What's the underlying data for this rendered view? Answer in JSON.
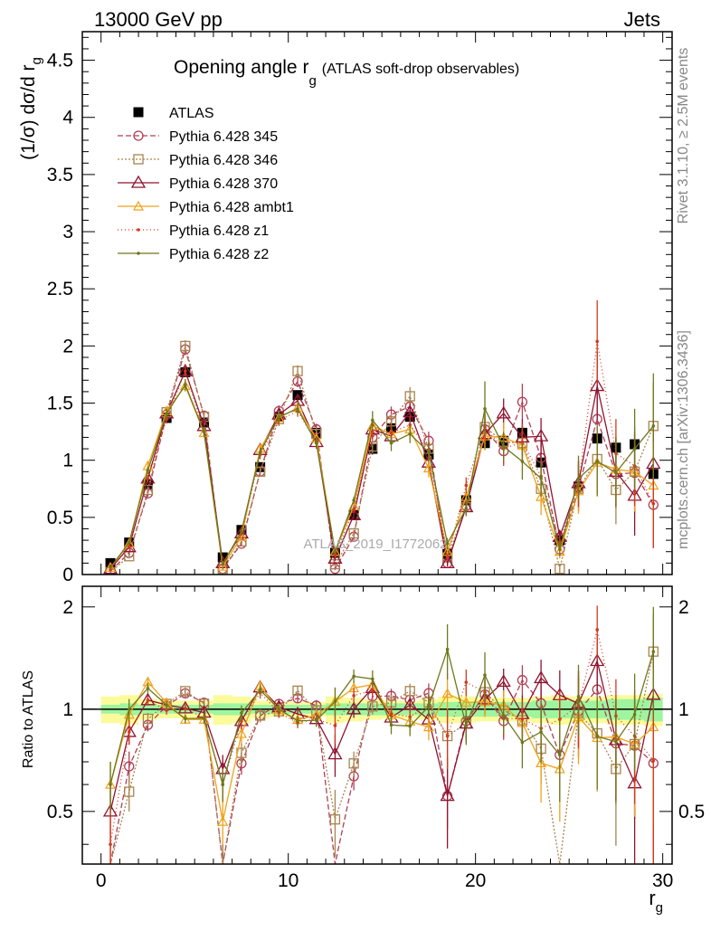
{
  "header": {
    "left": "13000 GeV pp",
    "right": "Jets"
  },
  "side_labels": {
    "rivet": "Rivet 3.1.10, ≥ 2.5M events",
    "mcplots": "mcplots.cern.ch [arXiv:1306.3436]"
  },
  "watermark": "ATLAS_2019_I1772062",
  "chart_data": [
    {
      "type": "line",
      "name": "main-panel",
      "title": "Opening angle r",
      "title_sub": "g",
      "title_suffix": "(ATLAS soft-drop observables)",
      "ylabel": "(1/σ) dσ/d r",
      "ylabel_sub": "g",
      "xlabel": "",
      "xlim": [
        -1,
        30.5
      ],
      "ylim": [
        0,
        4.75
      ],
      "yticks": [
        0,
        0.5,
        1,
        1.5,
        2,
        2.5,
        3,
        3.5,
        4,
        4.5
      ],
      "ytick_labels": [
        "0",
        "0.5",
        "1",
        "1.5",
        "2",
        "2.5",
        "3",
        "3.5",
        "4",
        "4.5"
      ],
      "x": [
        0.5,
        1.5,
        2.5,
        3.5,
        4.5,
        5.5,
        6.5,
        7.5,
        8.5,
        9.5,
        10.5,
        11.5,
        12.5,
        13.5,
        14.5,
        15.5,
        16.5,
        17.5,
        18.5,
        19.5,
        20.5,
        21.5,
        22.5,
        23.5,
        24.5,
        25.5,
        26.5,
        27.5,
        28.5,
        29.5
      ],
      "series": [
        {
          "name": "ATLAS",
          "color": "#000000",
          "marker": "square-filled",
          "dash": "none",
          "values": [
            0.1,
            0.28,
            0.79,
            1.37,
            1.77,
            1.33,
            0.15,
            0.39,
            0.94,
            1.38,
            1.57,
            1.24,
            0.19,
            0.52,
            1.1,
            1.28,
            1.38,
            1.05,
            0.18,
            0.65,
            1.15,
            1.17,
            1.24,
            0.98,
            0.3,
            0.77,
            1.19,
            1.11,
            1.14,
            0.88
          ],
          "errors": [
            0.01,
            0.02,
            0.03,
            0.04,
            0.04,
            0.04,
            0.02,
            0.03,
            0.04,
            0.04,
            0.04,
            0.04,
            0.03,
            0.04,
            0.05,
            0.05,
            0.05,
            0.05,
            0.03,
            0.05,
            0.06,
            0.06,
            0.06,
            0.06,
            0.04,
            0.07,
            0.08,
            0.09,
            0.1,
            0.1
          ]
        },
        {
          "name": "Pythia 6.428 345",
          "color": "#b03f55",
          "marker": "circle-open",
          "dash": "6,3",
          "values": [
            0.03,
            0.19,
            0.71,
            1.4,
            1.97,
            1.39,
            0.05,
            0.27,
            0.9,
            1.43,
            1.69,
            1.27,
            0.05,
            0.33,
            1.2,
            1.4,
            1.47,
            1.17,
            0.1,
            0.6,
            1.27,
            1.08,
            1.51,
            1.02,
            0.22,
            0.76,
            1.36,
            0.88,
            0.89,
            0.61
          ],
          "errors": [
            0.01,
            0.02,
            0.03,
            0.04,
            0.05,
            0.04,
            0.01,
            0.02,
            0.04,
            0.05,
            0.05,
            0.05,
            0.01,
            0.03,
            0.06,
            0.07,
            0.08,
            0.08,
            0.02,
            0.07,
            0.12,
            0.13,
            0.16,
            0.16,
            0.06,
            0.2,
            0.3,
            0.3,
            0.35,
            0.38
          ]
        },
        {
          "name": "Pythia 6.428 346",
          "color": "#a8844f",
          "marker": "square-open",
          "dash": "2,2",
          "values": [
            0.02,
            0.16,
            0.74,
            1.42,
            2.0,
            1.38,
            0.05,
            0.29,
            0.9,
            1.36,
            1.78,
            1.23,
            0.09,
            0.36,
            1.12,
            1.34,
            1.56,
            1.1,
            0.15,
            0.59,
            1.29,
            1.16,
            1.15,
            0.75,
            0.05,
            0.75,
            1.01,
            0.74,
            0.9,
            1.3
          ],
          "errors": [
            0.01,
            0.02,
            0.03,
            0.04,
            0.05,
            0.04,
            0.01,
            0.02,
            0.04,
            0.05,
            0.05,
            0.05,
            0.02,
            0.03,
            0.06,
            0.07,
            0.08,
            0.08,
            0.03,
            0.07,
            0.12,
            0.13,
            0.16,
            0.16,
            0.04,
            0.2,
            0.3,
            0.3,
            0.35,
            0.38
          ]
        },
        {
          "name": "Pythia 6.428 370",
          "color": "#8f1430",
          "marker": "triangle-open",
          "dash": "none",
          "values": [
            0.05,
            0.24,
            0.84,
            1.41,
            1.78,
            1.3,
            0.1,
            0.36,
            1.09,
            1.4,
            1.52,
            1.16,
            0.14,
            0.52,
            1.27,
            1.21,
            1.42,
            0.98,
            0.1,
            0.59,
            1.23,
            1.41,
            1.2,
            1.21,
            0.33,
            0.8,
            1.65,
            0.9,
            0.69,
            0.97
          ],
          "errors": [
            0.01,
            0.02,
            0.03,
            0.04,
            0.05,
            0.04,
            0.01,
            0.02,
            0.04,
            0.05,
            0.05,
            0.05,
            0.02,
            0.03,
            0.06,
            0.07,
            0.08,
            0.08,
            0.03,
            0.07,
            0.12,
            0.13,
            0.16,
            0.16,
            0.06,
            0.2,
            0.3,
            0.3,
            0.35,
            0.38
          ]
        },
        {
          "name": "Pythia 6.428 ambt1",
          "color": "#f0a21a",
          "marker": "triangle-open-small",
          "dash": "none",
          "values": [
            0.06,
            0.27,
            0.95,
            1.43,
            1.65,
            1.24,
            0.07,
            0.33,
            1.1,
            1.37,
            1.46,
            1.19,
            0.2,
            0.6,
            1.3,
            1.23,
            1.27,
            0.93,
            0.2,
            0.68,
            1.21,
            1.2,
            1.13,
            0.68,
            0.2,
            0.73,
            0.98,
            0.92,
            0.9,
            0.78
          ],
          "errors": [
            0.01,
            0.02,
            0.03,
            0.04,
            0.05,
            0.04,
            0.01,
            0.02,
            0.04,
            0.05,
            0.05,
            0.05,
            0.02,
            0.03,
            0.06,
            0.07,
            0.08,
            0.08,
            0.03,
            0.07,
            0.12,
            0.13,
            0.16,
            0.16,
            0.06,
            0.2,
            0.3,
            0.3,
            0.35,
            0.38
          ]
        },
        {
          "name": "Pythia 6.428 z1",
          "color": "#d23a1e",
          "marker": "dot",
          "dash": "1,3",
          "values": [
            0.04,
            0.24,
            0.84,
            1.36,
            1.78,
            1.25,
            0.09,
            0.36,
            1.05,
            1.35,
            1.43,
            1.16,
            0.17,
            0.57,
            1.25,
            1.24,
            1.31,
            1.08,
            0.15,
            0.78,
            1.29,
            1.1,
            1.16,
            0.86,
            0.28,
            0.79,
            2.04,
            1.06,
            0.95,
            0.62
          ],
          "errors": [
            0.01,
            0.02,
            0.03,
            0.04,
            0.05,
            0.04,
            0.01,
            0.02,
            0.04,
            0.05,
            0.05,
            0.05,
            0.02,
            0.03,
            0.06,
            0.07,
            0.08,
            0.08,
            0.03,
            0.07,
            0.12,
            0.13,
            0.16,
            0.16,
            0.06,
            0.2,
            0.36,
            0.3,
            0.35,
            0.38
          ]
        },
        {
          "name": "Pythia 6.428 z2",
          "color": "#6f781d",
          "marker": "dot",
          "dash": "none",
          "values": [
            0.06,
            0.28,
            0.91,
            1.41,
            1.66,
            1.25,
            0.09,
            0.38,
            1.07,
            1.38,
            1.45,
            1.15,
            0.2,
            0.65,
            1.35,
            1.15,
            1.23,
            1.07,
            0.27,
            0.58,
            1.45,
            1.12,
            0.99,
            0.84,
            0.22,
            0.84,
            0.99,
            0.89,
            1.1,
            1.3
          ],
          "errors": [
            0.01,
            0.02,
            0.03,
            0.04,
            0.05,
            0.04,
            0.01,
            0.02,
            0.04,
            0.05,
            0.05,
            0.05,
            0.02,
            0.03,
            0.08,
            0.07,
            0.08,
            0.08,
            0.05,
            0.07,
            0.24,
            0.13,
            0.16,
            0.16,
            0.06,
            0.2,
            0.3,
            0.3,
            0.35,
            0.46
          ]
        }
      ]
    },
    {
      "type": "line",
      "name": "ratio-panel",
      "ylabel": "Ratio to ATLAS",
      "xlabel": "r",
      "xlabel_sub": "g",
      "xlim": [
        -1,
        30.5
      ],
      "ylim": [
        0.35,
        2.3
      ],
      "yscale": "log",
      "yticks": [
        0.5,
        1,
        2
      ],
      "ytick_labels": [
        "0.5",
        "1",
        "2"
      ],
      "xticks": [
        0,
        10,
        20,
        30
      ],
      "xtick_labels": [
        "0",
        "10",
        "20",
        "30"
      ],
      "reference_line": 1,
      "band_inner_half_width": [
        0.03,
        0.04,
        0.03,
        0.03,
        0.03,
        0.03,
        0.04,
        0.04,
        0.03,
        0.03,
        0.03,
        0.03,
        0.04,
        0.04,
        0.04,
        0.04,
        0.04,
        0.04,
        0.05,
        0.05,
        0.05,
        0.05,
        0.05,
        0.06,
        0.06,
        0.06,
        0.06,
        0.07,
        0.07,
        0.08
      ],
      "band_outer_half_width": [
        0.09,
        0.1,
        0.07,
        0.06,
        0.06,
        0.06,
        0.1,
        0.09,
        0.06,
        0.05,
        0.05,
        0.05,
        0.09,
        0.08,
        0.07,
        0.06,
        0.06,
        0.07,
        0.09,
        0.09,
        0.08,
        0.08,
        0.08,
        0.09,
        0.1,
        0.09,
        0.09,
        0.1,
        0.1,
        0.11
      ]
    }
  ]
}
